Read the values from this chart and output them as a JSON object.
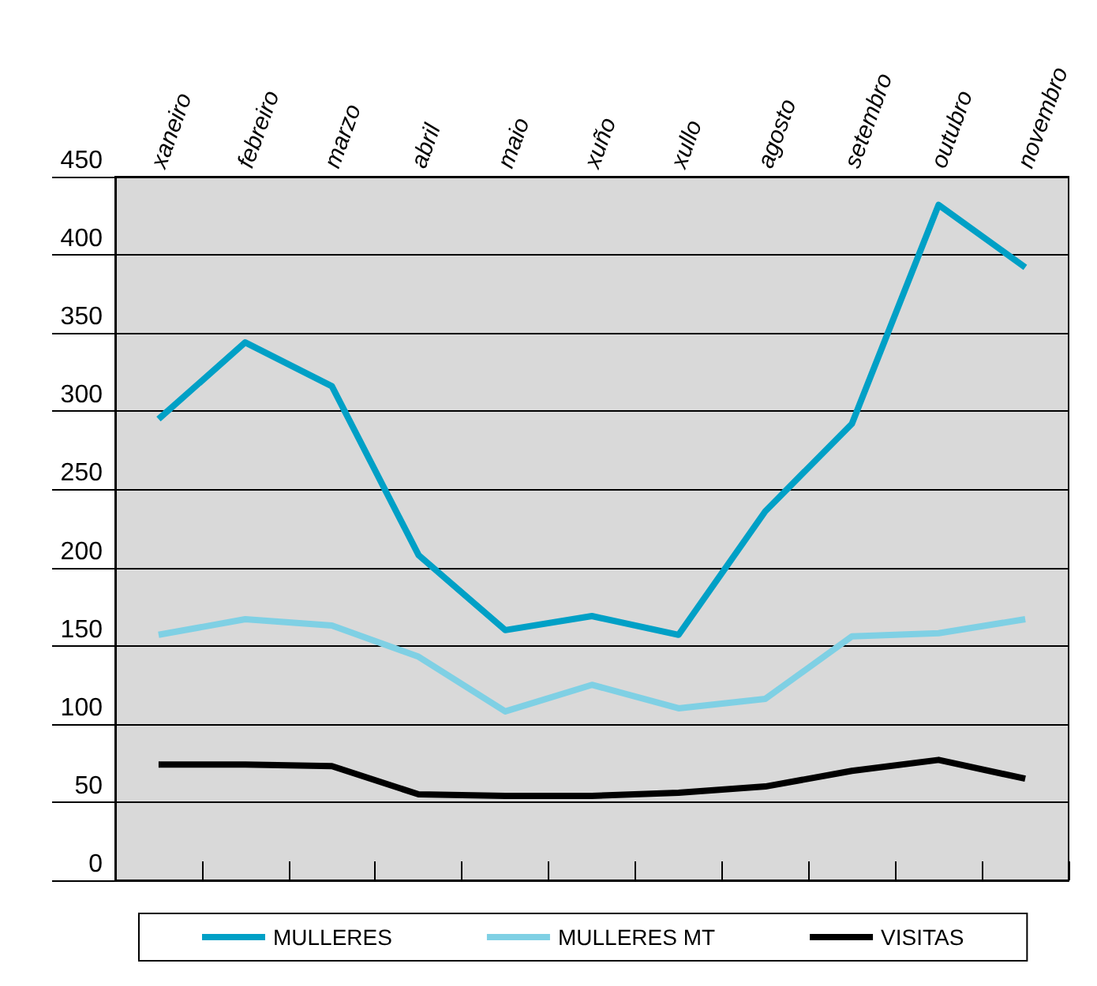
{
  "chart_data": {
    "type": "line",
    "categories": [
      "xaneiro",
      "febreiro",
      "marzo",
      "abril",
      "maio",
      "xuño",
      "xullo",
      "agosto",
      "setembro",
      "outubro",
      "novembro"
    ],
    "series": [
      {
        "name": "MULLERES",
        "color": "#00a0c6",
        "values": [
          295,
          344,
          316,
          208,
          160,
          169,
          157,
          236,
          292,
          432,
          392
        ]
      },
      {
        "name": "MULLERES MT",
        "color": "#7fd0e4",
        "values": [
          157,
          167,
          163,
          143,
          108,
          125,
          110,
          116,
          156,
          158,
          167
        ]
      },
      {
        "name": "VISITAS",
        "color": "#000000",
        "values": [
          74,
          74,
          73,
          55,
          54,
          54,
          56,
          60,
          70,
          77,
          65
        ]
      }
    ],
    "ylim": [
      0,
      450
    ],
    "yticks": [
      0,
      50,
      100,
      150,
      200,
      250,
      300,
      350,
      400,
      450
    ],
    "grid": "y",
    "legend": "bottom",
    "marker": "none",
    "line_style": "solid"
  }
}
